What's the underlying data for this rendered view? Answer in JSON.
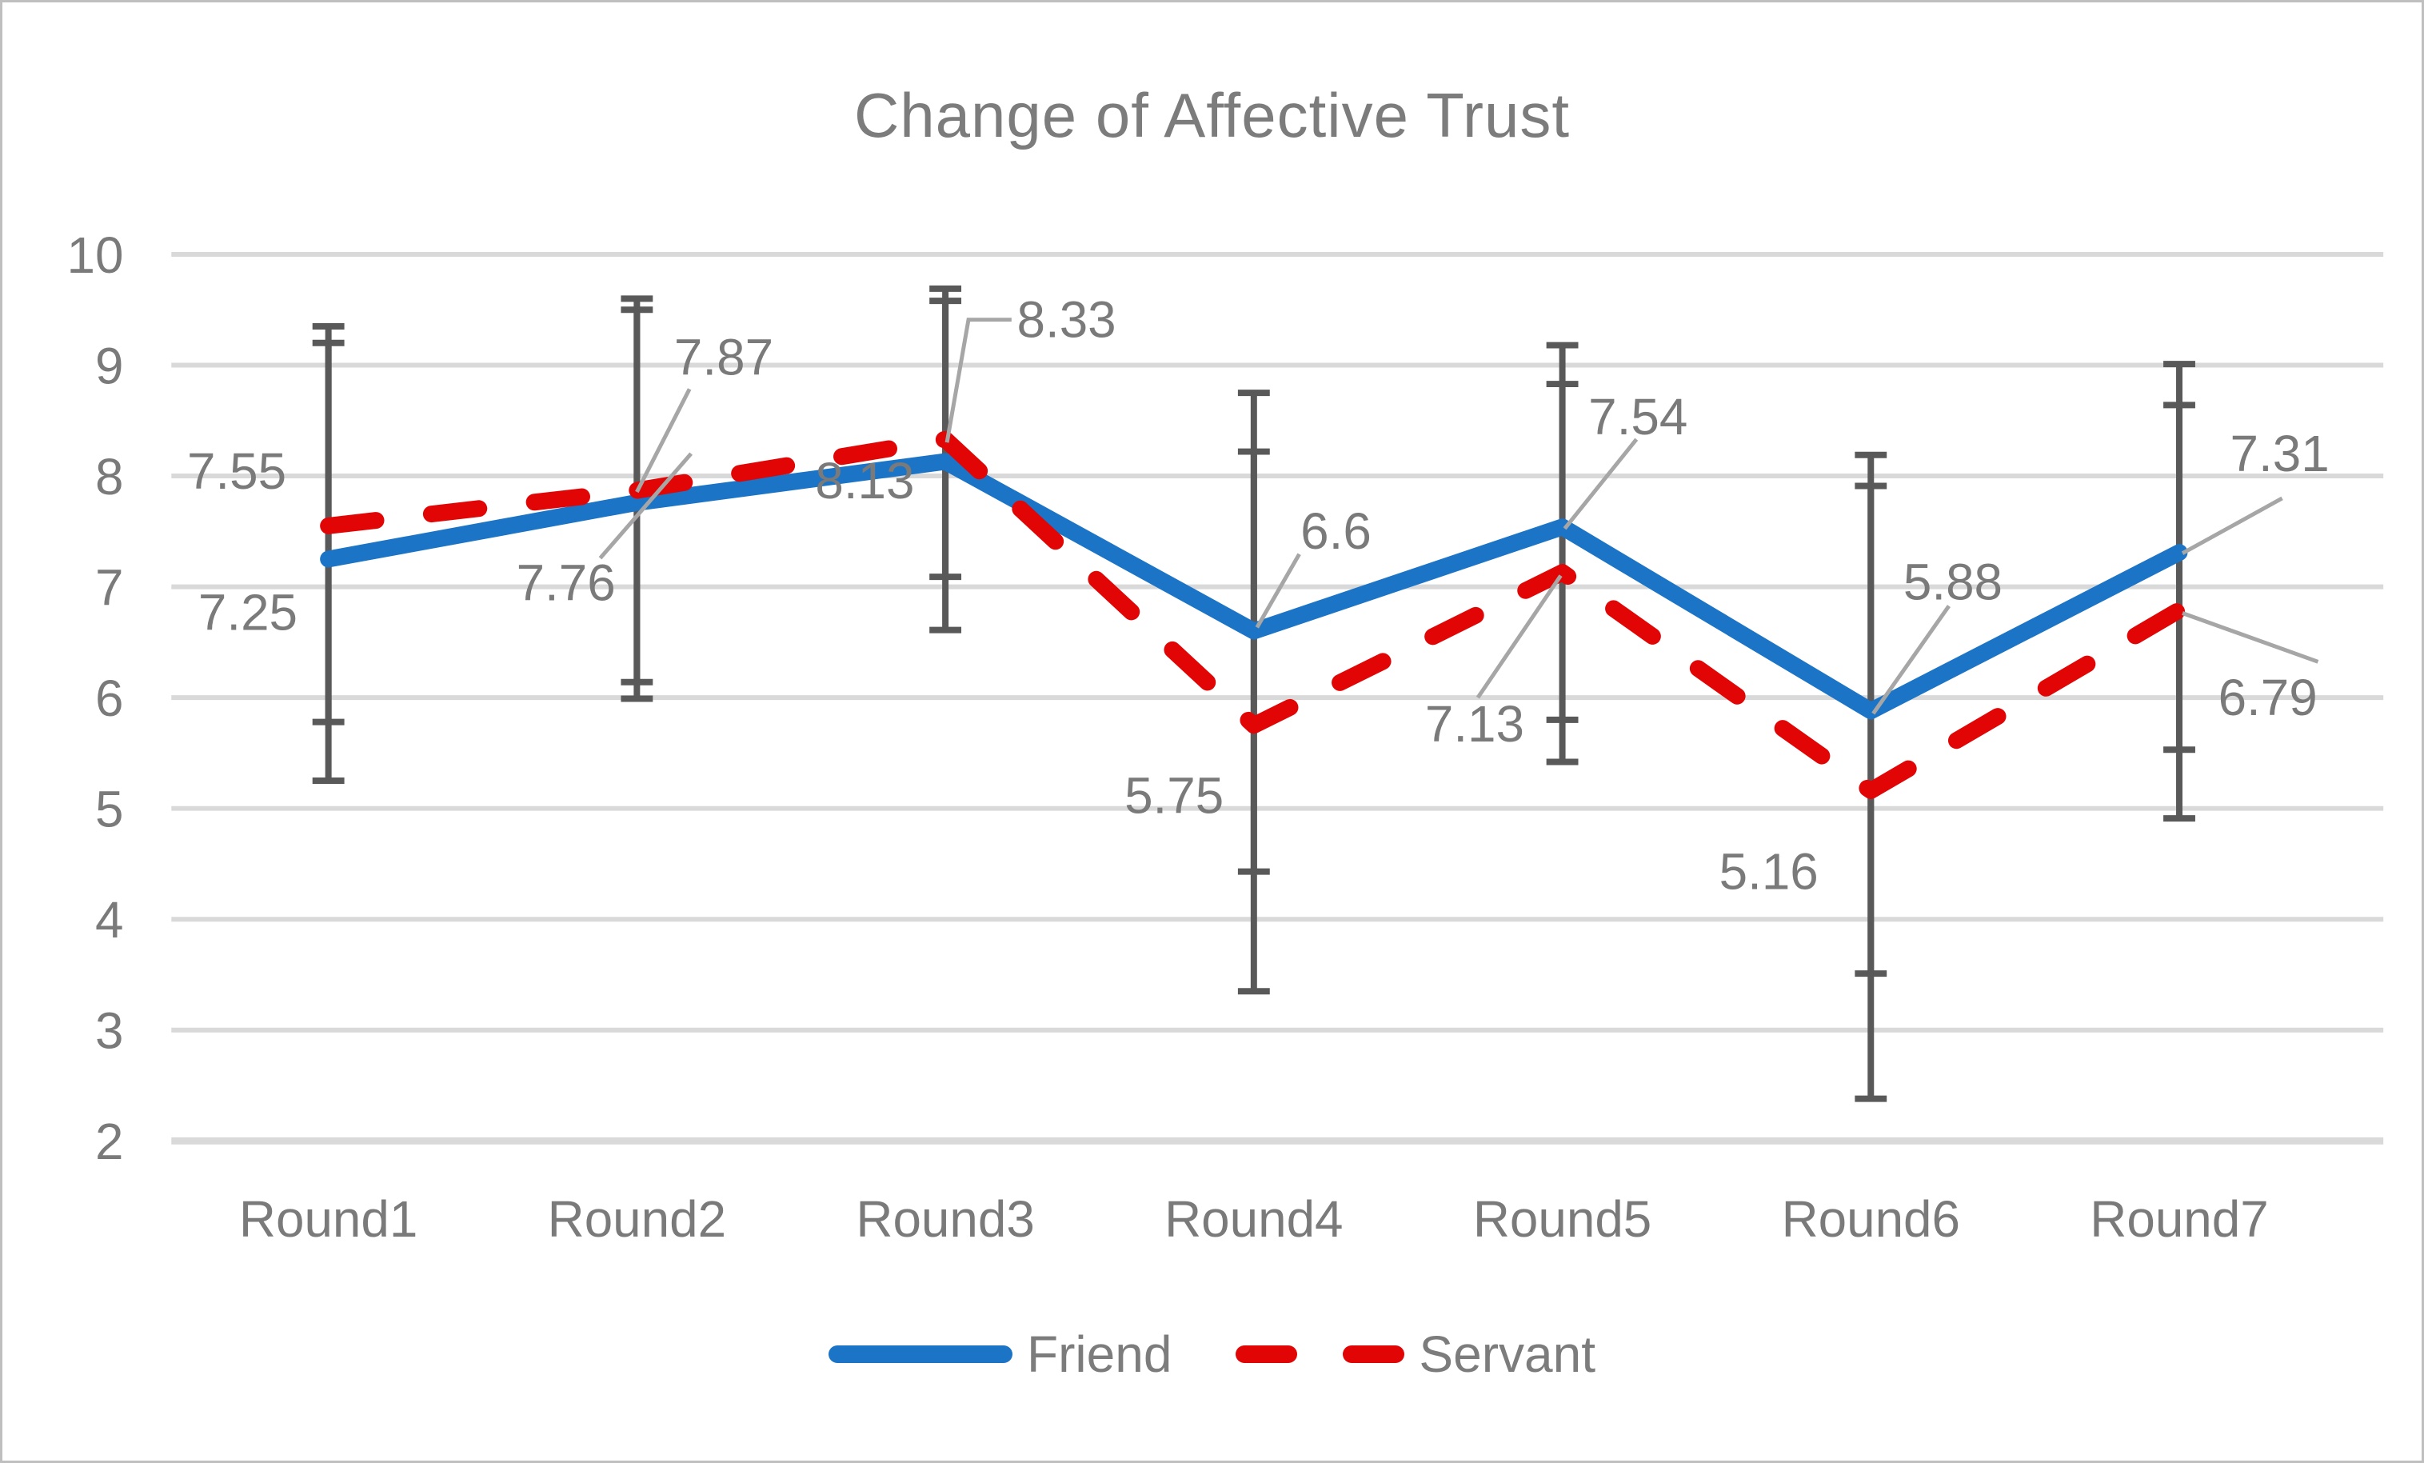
{
  "chart_data": {
    "type": "line",
    "title": "Change of Affective Trust",
    "categories": [
      "Round1",
      "Round2",
      "Round3",
      "Round4",
      "Round5",
      "Round6",
      "Round7"
    ],
    "y_axis": {
      "min": 2,
      "max": 10,
      "step": 1,
      "ticks": [
        10,
        9,
        8,
        7,
        6,
        5,
        4,
        3,
        2
      ]
    },
    "grid": true,
    "legend": {
      "position": "bottom",
      "items": [
        "Friend",
        "Servant"
      ]
    },
    "series": [
      {
        "name": "Friend",
        "color": "#1B74C6",
        "line_style": "solid",
        "values": [
          7.25,
          7.76,
          8.13,
          6.6,
          7.54,
          5.88,
          7.31
        ],
        "labels": [
          "7.25",
          "7.76",
          "8.13",
          "6.6",
          "7.54",
          "5.88",
          "7.31"
        ],
        "error_low": [
          5.25,
          5.99,
          6.61,
          4.43,
          5.8,
          3.51,
          5.53
        ],
        "error_high": [
          9.2,
          9.5,
          9.58,
          8.75,
          9.18,
          8.19,
          9.01
        ]
      },
      {
        "name": "Servant",
        "color": "#E10505",
        "line_style": "dashed",
        "values": [
          7.55,
          7.87,
          8.33,
          5.75,
          7.13,
          5.16,
          6.79
        ],
        "labels": [
          "7.55",
          "7.87",
          "8.33",
          "5.75",
          "7.13",
          "5.16",
          "6.79"
        ],
        "error_low": [
          5.78,
          6.14,
          7.09,
          3.35,
          5.42,
          2.38,
          4.91
        ],
        "error_high": [
          9.35,
          9.6,
          9.69,
          8.22,
          8.83,
          7.91,
          8.64
        ]
      }
    ],
    "colors": {
      "grid": "#D9D9D9",
      "axis_text": "#7A7A7A",
      "title_text": "#7C7C7C",
      "error_bar": "#595959",
      "leader_line": "#A6A6A6",
      "border": "#BFBFBF",
      "background": "#FFFFFF"
    }
  }
}
